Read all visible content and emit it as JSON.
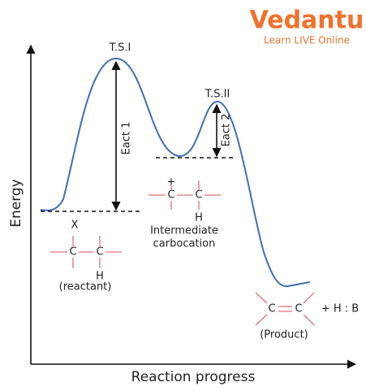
{
  "logo": {
    "name": "Vedantu",
    "tagline": "Learn LIVE Online"
  },
  "axes": {
    "y_label": "Energy",
    "x_label": "Reaction progress"
  },
  "transition_states": [
    "T.S.I",
    "T.S.II"
  ],
  "activation_energies": [
    "Eact 1",
    "Eact 2"
  ],
  "reactant": {
    "top": "X",
    "atoms": [
      "C",
      "C"
    ],
    "bottom": "H",
    "label": "(reactant)"
  },
  "intermediate": {
    "charge": "+",
    "atoms": [
      "C",
      "C"
    ],
    "bottom": "H",
    "label": [
      "Intermediate",
      "carbocation"
    ]
  },
  "product": {
    "atoms": [
      "C",
      "C"
    ],
    "byproduct": "+ H : B",
    "label": "(Product)"
  }
}
